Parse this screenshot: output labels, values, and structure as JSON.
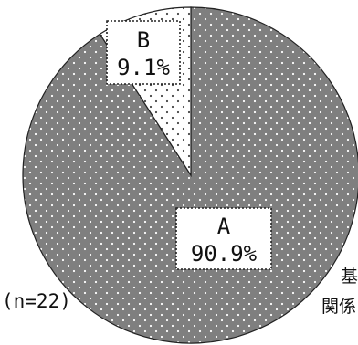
{
  "chart_data": {
    "type": "pie",
    "categories": [
      "A",
      "B"
    ],
    "values": [
      90.9,
      9.1
    ],
    "value_labels": [
      "90.9%",
      "9.1%"
    ],
    "sample_note": "(n=22)",
    "cut_off_text": [
      "基",
      "関係"
    ],
    "colors": {
      "A": "#7f7f7f",
      "B": "#ffffff",
      "A_dots": "#ffffff",
      "B_dots": "#444444",
      "outline": "#222222"
    }
  }
}
